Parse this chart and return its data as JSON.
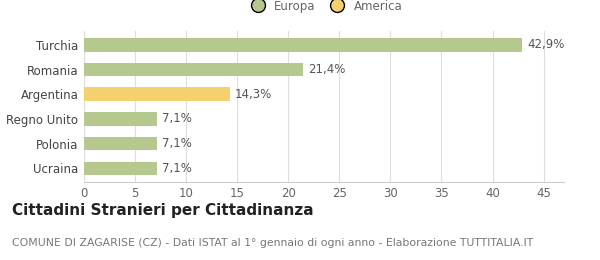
{
  "categories": [
    "Ucraina",
    "Polonia",
    "Regno Unito",
    "Argentina",
    "Romania",
    "Turchia"
  ],
  "values": [
    7.1,
    7.1,
    7.1,
    14.3,
    21.4,
    42.9
  ],
  "labels": [
    "7,1%",
    "7,1%",
    "7,1%",
    "14,3%",
    "21,4%",
    "42,9%"
  ],
  "colors": [
    "#b5c98e",
    "#b5c98e",
    "#b5c98e",
    "#f5d06e",
    "#b5c98e",
    "#b5c98e"
  ],
  "legend_items": [
    {
      "label": "Europa",
      "color": "#b5c98e"
    },
    {
      "label": "America",
      "color": "#f5d06e"
    }
  ],
  "xlim": [
    0,
    47
  ],
  "xticks": [
    0,
    5,
    10,
    15,
    20,
    25,
    30,
    35,
    40,
    45
  ],
  "title_bold": "Cittadini Stranieri per Cittadinanza",
  "subtitle": "COMUNE DI ZAGARISE (CZ) - Dati ISTAT al 1° gennaio di ogni anno - Elaborazione TUTTITALIA.IT",
  "bg_color": "#ffffff",
  "bar_height": 0.55,
  "label_fontsize": 8.5,
  "tick_fontsize": 8.5,
  "title_fontsize": 11,
  "subtitle_fontsize": 7.8
}
